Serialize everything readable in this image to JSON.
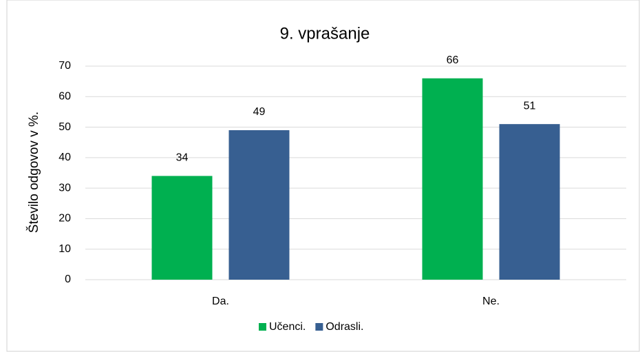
{
  "chart_data": {
    "type": "bar",
    "title": "9. vprašanje",
    "y_label": "Število odgovov v %.",
    "categories": [
      "Da.",
      "Ne."
    ],
    "series": [
      {
        "name": "Učenci.",
        "color": "#00b050",
        "values": [
          34,
          66
        ]
      },
      {
        "name": "Odrasli.",
        "color": "#375f91",
        "values": [
          49,
          51
        ]
      }
    ],
    "ylim": [
      0,
      70
    ],
    "yticks": [
      0,
      10,
      20,
      30,
      40,
      50,
      60,
      70
    ],
    "grid": true,
    "legend": "bottom",
    "data_labels": true
  }
}
